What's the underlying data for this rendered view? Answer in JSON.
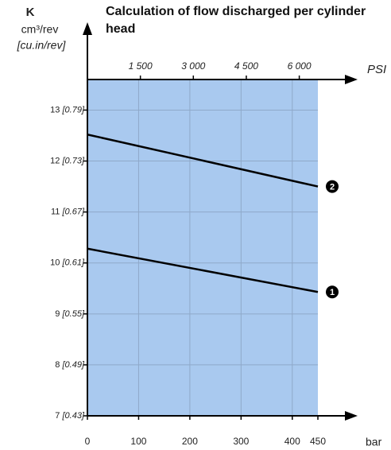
{
  "chart_data": {
    "type": "line",
    "title": "Calculation of flow discharged per cylinder head",
    "y_label": "K",
    "y_unit": "cm³/rev",
    "y_unit_alt": "[cu.in/rev]",
    "x_label": "bar",
    "x2_label": "PSI",
    "x": [
      0,
      450
    ],
    "series": [
      {
        "name": "1",
        "color": "#000000",
        "values": [
          10.28,
          9.43
        ]
      },
      {
        "name": "2",
        "color": "#000000",
        "values": [
          12.52,
          11.5
        ]
      }
    ],
    "xlim": [
      0,
      450
    ],
    "xticks": [
      0,
      100,
      200,
      300,
      400,
      450
    ],
    "x2lim": [
      0,
      6527
    ],
    "x2ticks": [
      {
        "value": 1500,
        "label": "1 500"
      },
      {
        "value": 3000,
        "label": "3 000"
      },
      {
        "value": 4500,
        "label": "4 500"
      },
      {
        "value": 6000,
        "label": "6 000"
      }
    ],
    "ylim": [
      7,
      13.6
    ],
    "yticks": [
      {
        "value": 7,
        "label": "7 [0.43]"
      },
      {
        "value": 8,
        "label": "8 [0.49]"
      },
      {
        "value": 9,
        "label": "9 [0.55]"
      },
      {
        "value": 10,
        "label": "10 [0.61]"
      },
      {
        "value": 11,
        "label": "11 [0.67]"
      },
      {
        "value": 12,
        "label": "12 [0.73]"
      },
      {
        "value": 13,
        "label": "13 [0.79]"
      }
    ],
    "plot_color": "#a9c9ef",
    "grid": true
  }
}
